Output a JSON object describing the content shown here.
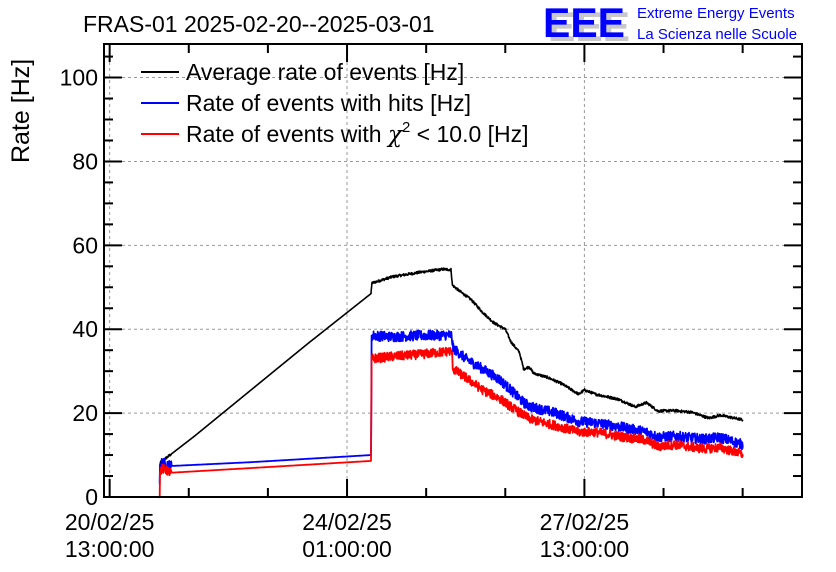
{
  "chart_data": {
    "type": "line",
    "title": "FRAS-01 2025-02-20--2025-03-01",
    "xlabel": "",
    "ylabel": "Rate [Hz]",
    "ylim": [
      0,
      108
    ],
    "x_unit": "hours since 20/02/25 13:00:00",
    "xlim": [
      -2,
      245
    ],
    "grid": true,
    "legend_position": "top-left",
    "yticks": [
      0,
      20,
      40,
      60,
      80,
      100
    ],
    "ytick_labels": [
      "0",
      "20",
      "40",
      "60",
      "80",
      "100"
    ],
    "y_minor_step": 5,
    "xticks": [
      0,
      84,
      168
    ],
    "xtick_labels": [
      [
        "20/02/25",
        "13:00:00"
      ],
      [
        "24/02/25",
        "01:00:00"
      ],
      [
        "27/02/25",
        "13:00:00"
      ]
    ],
    "x_minor_step": 28,
    "series": [
      {
        "name": "Average rate of events [Hz]",
        "color": "#000000",
        "noise": 0.3,
        "points": [
          [
            17.7,
            7.5
          ],
          [
            18.2,
            8.5
          ],
          [
            20,
            9.3
          ],
          [
            30,
            14.5
          ],
          [
            50,
            25.5
          ],
          [
            70,
            36.5
          ],
          [
            92.5,
            48.5
          ],
          [
            92.8,
            51
          ],
          [
            100,
            52.5
          ],
          [
            110,
            53.6
          ],
          [
            118,
            54.3
          ],
          [
            120.8,
            54.2
          ],
          [
            121.3,
            50.5
          ],
          [
            124,
            49
          ],
          [
            128,
            47
          ],
          [
            132,
            44
          ],
          [
            136,
            41.5
          ],
          [
            140,
            40
          ],
          [
            142,
            37
          ],
          [
            145,
            34.5
          ],
          [
            146.5,
            30.5
          ],
          [
            148.5,
            31
          ],
          [
            150,
            29.5
          ],
          [
            155,
            28.5
          ],
          [
            160,
            27
          ],
          [
            166,
            24.5
          ],
          [
            168,
            25.5
          ],
          [
            172,
            24.5
          ],
          [
            180,
            23.3
          ],
          [
            186,
            21.5
          ],
          [
            190,
            22.5
          ],
          [
            194,
            20.5
          ],
          [
            200,
            20.6
          ],
          [
            206,
            20.2
          ],
          [
            212,
            18.8
          ],
          [
            216,
            19.5
          ],
          [
            224,
            18.4
          ]
        ]
      },
      {
        "name": "Rate of events with hits [Hz]",
        "color": "#0000ff",
        "noise": 1.2,
        "points": [
          [
            17.7,
            3
          ],
          [
            17.8,
            7.5
          ],
          [
            18.5,
            8.2
          ],
          [
            22,
            7.4
          ],
          [
            50,
            8.3
          ],
          [
            92.5,
            10
          ],
          [
            92.7,
            38.5
          ],
          [
            100,
            38.2
          ],
          [
            110,
            38.5
          ],
          [
            121,
            38.6
          ],
          [
            121.5,
            35.5
          ],
          [
            126,
            33
          ],
          [
            132,
            30.5
          ],
          [
            138,
            28
          ],
          [
            142,
            25.5
          ],
          [
            146.5,
            22.5
          ],
          [
            149,
            21.5
          ],
          [
            158,
            20
          ],
          [
            166,
            18
          ],
          [
            172,
            17.7
          ],
          [
            180,
            16.8
          ],
          [
            190,
            15.5
          ],
          [
            194,
            14.3
          ],
          [
            200,
            14.5
          ],
          [
            210,
            13.8
          ],
          [
            216,
            14.2
          ],
          [
            224,
            12.5
          ]
        ]
      },
      {
        "name": "Rate of events with χ² < 10.0 [Hz]",
        "color": "#ff0000",
        "noise": 1.1,
        "points": [
          [
            17.7,
            0.5
          ],
          [
            17.8,
            6
          ],
          [
            18.5,
            6.8
          ],
          [
            22,
            5.8
          ],
          [
            50,
            6.9
          ],
          [
            92.5,
            8.6
          ],
          [
            92.7,
            33
          ],
          [
            100,
            33.5
          ],
          [
            110,
            34
          ],
          [
            121,
            34.8
          ],
          [
            121.5,
            30.5
          ],
          [
            126,
            28.5
          ],
          [
            132,
            25.5
          ],
          [
            138,
            23.5
          ],
          [
            142,
            21.5
          ],
          [
            146.5,
            19.5
          ],
          [
            149,
            18.5
          ],
          [
            158,
            17
          ],
          [
            166,
            15.5
          ],
          [
            172,
            15.5
          ],
          [
            180,
            14.5
          ],
          [
            190,
            13.5
          ],
          [
            194,
            12
          ],
          [
            200,
            12.5
          ],
          [
            210,
            11.5
          ],
          [
            216,
            11.8
          ],
          [
            224,
            10.2
          ]
        ]
      }
    ],
    "legend": [
      {
        "label_main": "Average rate of events [Hz]",
        "color": "#000000"
      },
      {
        "label_main": "Rate of events with hits [Hz]",
        "color": "#0000ff"
      },
      {
        "label_pre": "Rate of events with ",
        "label_sym": "χ",
        "label_sup": "2",
        "label_post": " < 10.0 [Hz]",
        "color": "#ff0000"
      }
    ]
  },
  "logo": {
    "mark": "EEE",
    "line1": "Extreme Energy Events",
    "line2": "La Scienza nelle Scuole",
    "color": "#0000ff",
    "shadow_color": "#c8c8c8"
  }
}
